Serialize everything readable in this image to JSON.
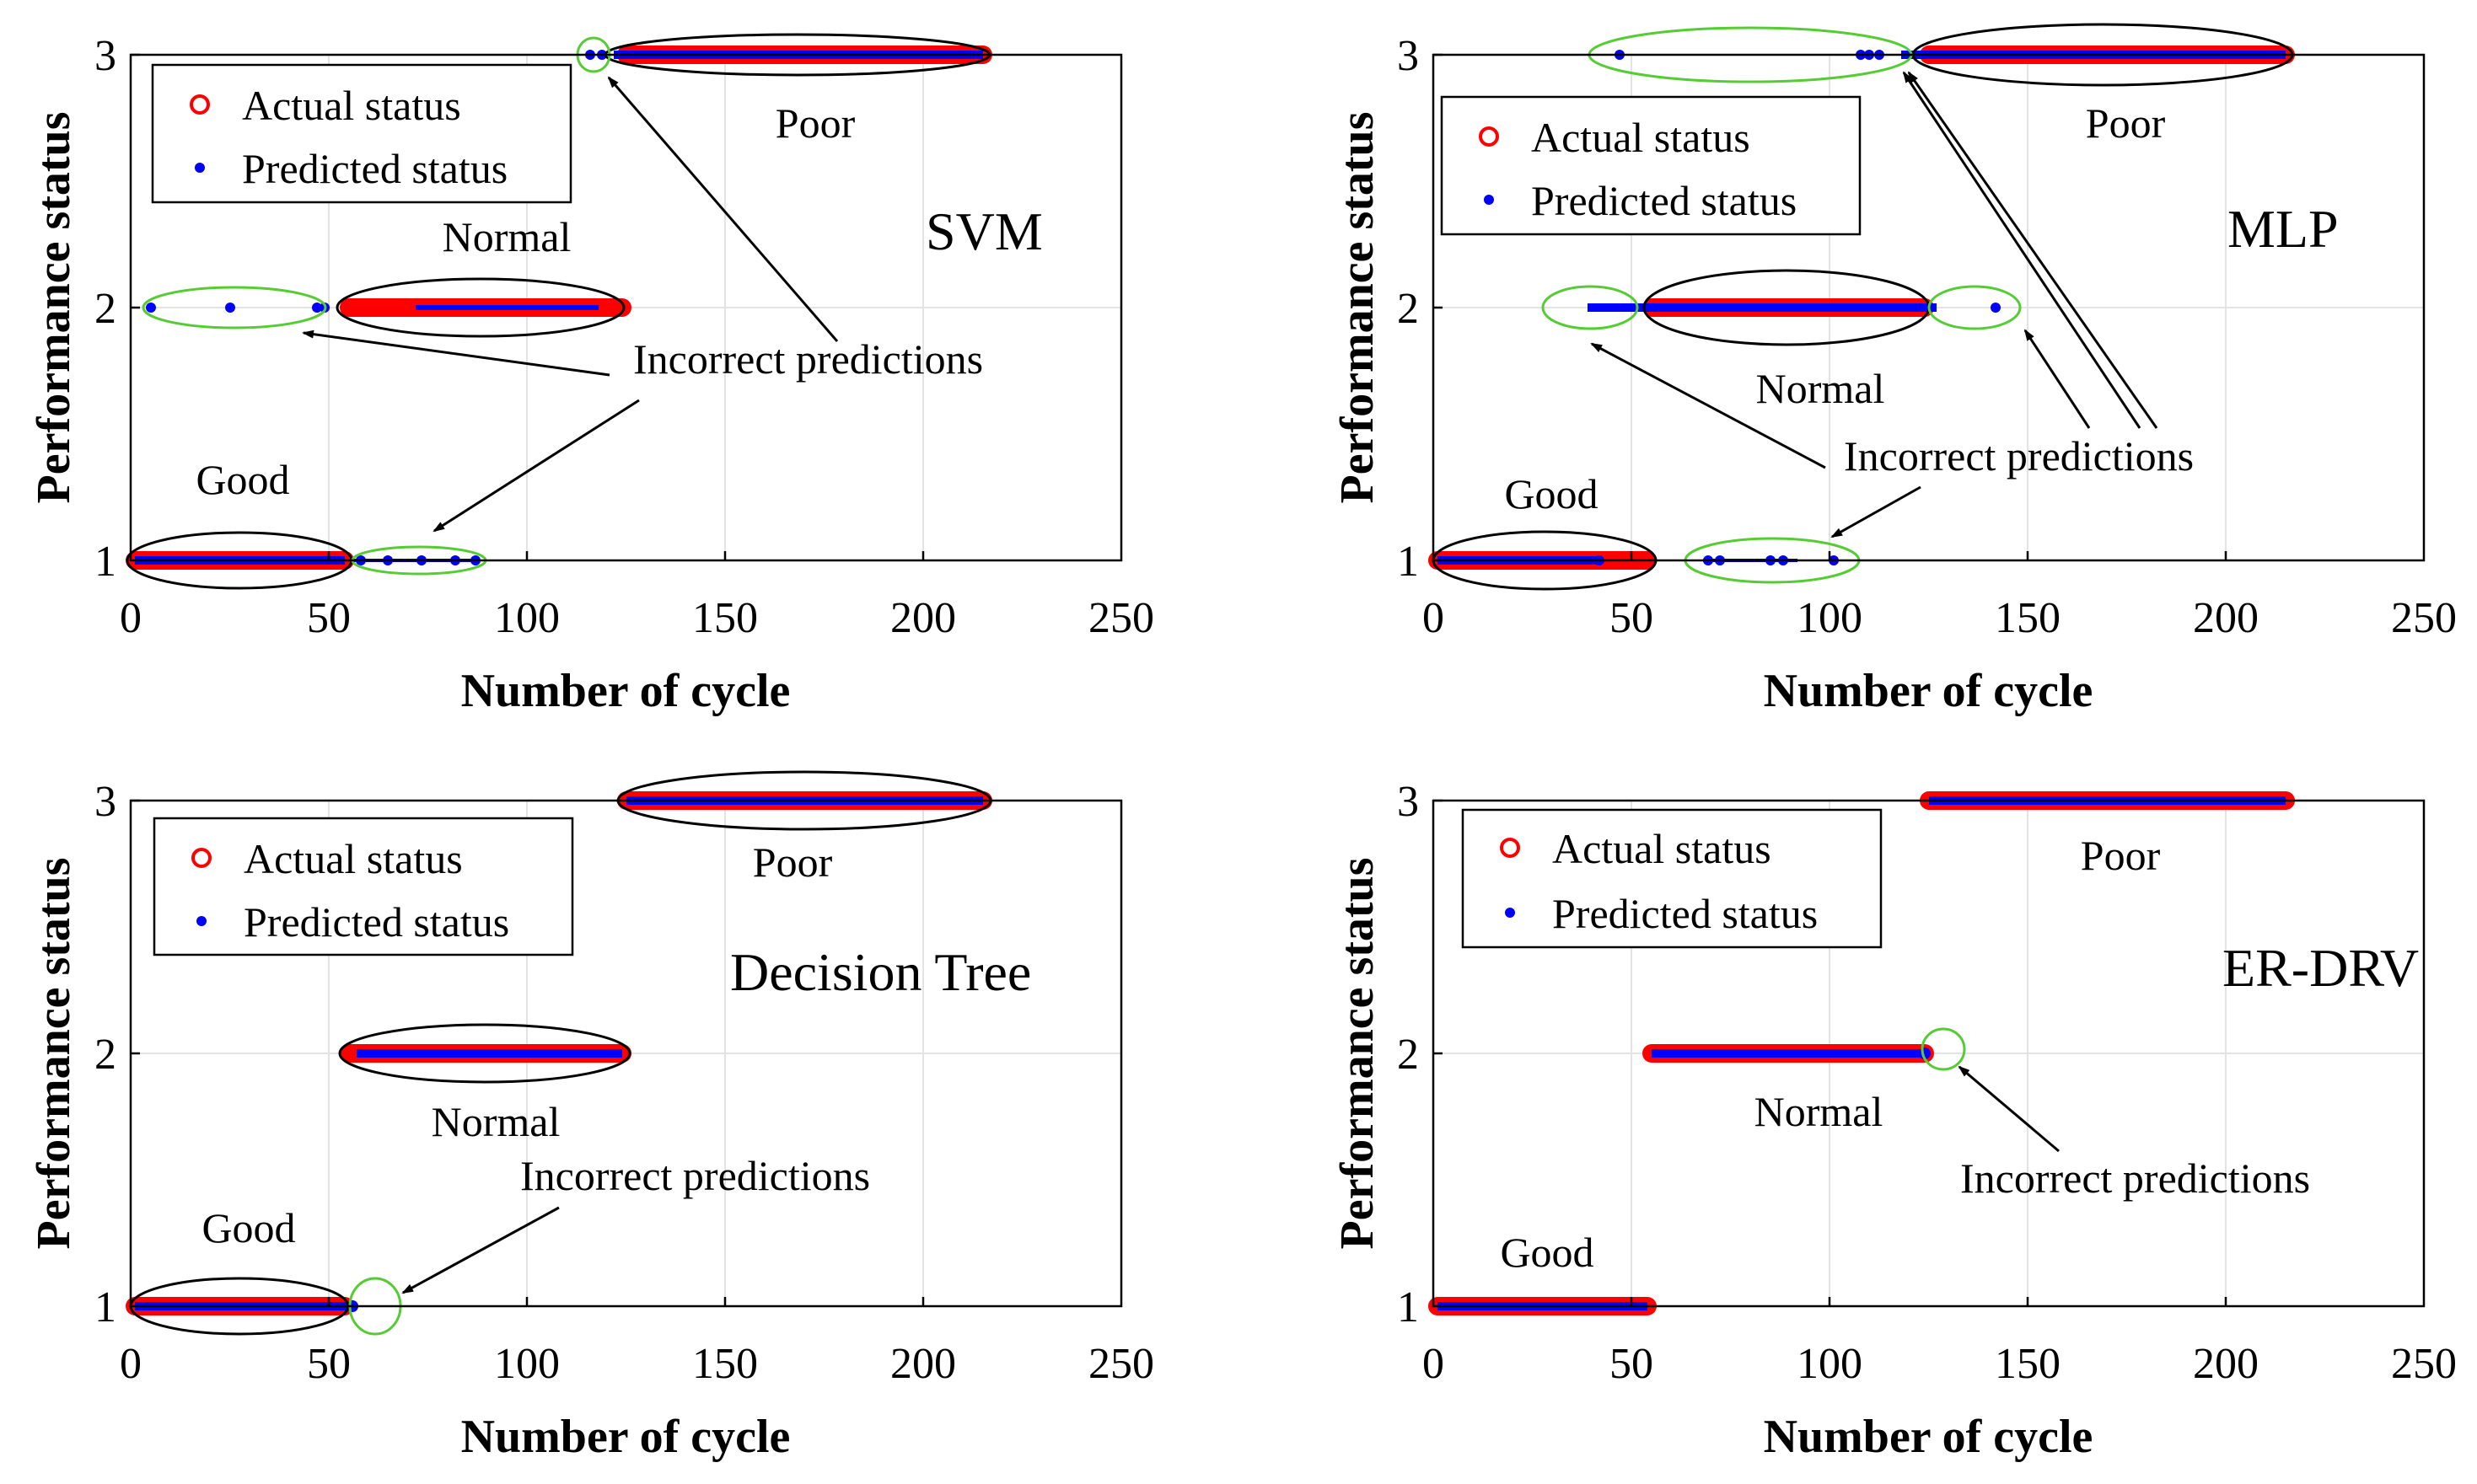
{
  "colors": {
    "actual": "#ff0000",
    "predicted": "#0000ff",
    "highlight": "#55cc33",
    "group": "#000000",
    "grid": "#e3e3e3"
  },
  "chart_data": [
    {
      "type": "scatter",
      "title": "SVM",
      "xlabel": "Number of cycle",
      "ylabel": "Performance status",
      "xlim": [
        0,
        250
      ],
      "ylim": [
        1,
        3
      ],
      "xticks": [
        0,
        50,
        100,
        150,
        200,
        250
      ],
      "yticks": [
        1,
        2,
        3
      ],
      "grid": true,
      "legend": {
        "position": "top-left",
        "entries": [
          "Actual status",
          "Predicted status"
        ]
      },
      "series": [
        {
          "name": "Actual status",
          "marker": "circle",
          "segments": [
            {
              "x": [
                1,
                54
              ],
              "y": 1
            },
            {
              "x": [
                55,
                124
              ],
              "y": 2
            },
            {
              "x": [
                125,
                215
              ],
              "y": 3
            }
          ]
        },
        {
          "name": "Predicted status",
          "marker": "dot",
          "segments": [
            {
              "x": [
                1,
                54
              ],
              "y": 1
            },
            {
              "x": [
                56,
                87
              ],
              "y": 1
            },
            {
              "x": [
                72,
                118
              ],
              "y": 2
            },
            {
              "x": [
                122,
                215
              ],
              "y": 3
            }
          ],
          "points": [
            {
              "x": 5,
              "y": 2
            },
            {
              "x": 25,
              "y": 2
            },
            {
              "x": 47,
              "y": 2
            },
            {
              "x": 49,
              "y": 2
            },
            {
              "x": 115,
              "y": 3
            },
            {
              "x": 118,
              "y": 3
            }
          ]
        }
      ],
      "groups": [
        {
          "label": "Good",
          "x": [
            0,
            55
          ],
          "y": 1
        },
        {
          "label": "Normal",
          "x": [
            52,
            124
          ],
          "y": 2
        },
        {
          "label": "Poor",
          "x": [
            120,
            216
          ],
          "y": 3
        }
      ],
      "highlights": [
        {
          "x": [
            3,
            51
          ],
          "y": 2
        },
        {
          "x": [
            56,
            89
          ],
          "y": 1
        },
        {
          "x": [
            112,
            120
          ],
          "y": 3
        }
      ],
      "annotation": "Incorrect predictions"
    },
    {
      "type": "scatter",
      "title": "MLP",
      "xlabel": "Number of cycle",
      "ylabel": "Performance status",
      "xlim": [
        0,
        250
      ],
      "ylim": [
        1,
        3
      ],
      "xticks": [
        0,
        50,
        100,
        150,
        200,
        250
      ],
      "yticks": [
        1,
        2,
        3
      ],
      "grid": true,
      "legend": {
        "position": "top-left",
        "entries": [
          "Actual status",
          "Predicted status"
        ]
      },
      "series": [
        {
          "name": "Actual status",
          "marker": "circle",
          "segments": [
            {
              "x": [
                1,
                54
              ],
              "y": 1
            },
            {
              "x": [
                55,
                124
              ],
              "y": 2
            },
            {
              "x": [
                125,
                215
              ],
              "y": 3
            }
          ]
        },
        {
          "name": "Predicted status",
          "marker": "dot",
          "segments": [
            {
              "x": [
                1,
                42
              ],
              "y": 1
            },
            {
              "x": [
                68,
                92
              ],
              "y": 1
            },
            {
              "x": [
                39,
                127
              ],
              "y": 2
            },
            {
              "x": [
                118,
                215
              ],
              "y": 3
            }
          ],
          "points": [
            {
              "x": 101,
              "y": 1
            },
            {
              "x": 142,
              "y": 2
            },
            {
              "x": 47,
              "y": 3
            }
          ]
        }
      ],
      "groups": [
        {
          "label": "Good",
          "x": [
            0,
            55
          ],
          "y": 1
        },
        {
          "label": "Normal",
          "x": [
            52,
            124
          ],
          "y": 2
        },
        {
          "label": "Poor",
          "x": [
            120,
            216
          ],
          "y": 3
        }
      ],
      "highlights": [
        {
          "x": [
            40,
            120
          ],
          "y": 3
        },
        {
          "x": [
            29,
            41
          ],
          "y": 2
        },
        {
          "x": [
            128,
            148
          ],
          "y": 2
        },
        {
          "x": [
            63,
            107
          ],
          "y": 1
        }
      ],
      "annotation": "Incorrect predictions"
    },
    {
      "type": "scatter",
      "title": "Decision Tree",
      "xlabel": "Number of cycle",
      "ylabel": "Performance status",
      "xlim": [
        0,
        250
      ],
      "ylim": [
        1,
        3
      ],
      "xticks": [
        0,
        50,
        100,
        150,
        200,
        250
      ],
      "yticks": [
        1,
        2,
        3
      ],
      "grid": true,
      "legend": {
        "position": "top-left",
        "entries": [
          "Actual status",
          "Predicted status"
        ]
      },
      "series": [
        {
          "name": "Actual status",
          "marker": "circle",
          "segments": [
            {
              "x": [
                1,
                54
              ],
              "y": 1
            },
            {
              "x": [
                55,
                124
              ],
              "y": 2
            },
            {
              "x": [
                125,
                215
              ],
              "y": 3
            }
          ]
        },
        {
          "name": "Predicted status",
          "marker": "dot",
          "segments": [
            {
              "x": [
                1,
                56
              ],
              "y": 1
            },
            {
              "x": [
                57,
                124
              ],
              "y": 2
            },
            {
              "x": [
                125,
                215
              ],
              "y": 3
            }
          ],
          "points": [
            {
              "x": 56,
              "y": 1
            }
          ]
        }
      ],
      "groups": [
        {
          "label": "Good",
          "x": [
            0,
            55
          ],
          "y": 1
        },
        {
          "label": "Normal",
          "x": [
            52,
            124
          ],
          "y": 2
        },
        {
          "label": "Poor",
          "x": [
            120,
            216
          ],
          "y": 3
        }
      ],
      "highlights": [
        {
          "x": [
            54,
            67
          ],
          "y": 1
        }
      ],
      "annotation": "Incorrect predictions"
    },
    {
      "type": "scatter",
      "title": "ER-DRV",
      "xlabel": "Number of cycle",
      "ylabel": "Performance status",
      "xlim": [
        0,
        250
      ],
      "ylim": [
        1,
        3
      ],
      "xticks": [
        0,
        50,
        100,
        150,
        200,
        250
      ],
      "yticks": [
        1,
        2,
        3
      ],
      "grid": true,
      "legend": {
        "position": "top-left",
        "entries": [
          "Actual status",
          "Predicted status"
        ]
      },
      "series": [
        {
          "name": "Actual status",
          "marker": "circle",
          "segments": [
            {
              "x": [
                1,
                54
              ],
              "y": 1
            },
            {
              "x": [
                55,
                124
              ],
              "y": 2
            },
            {
              "x": [
                125,
                215
              ],
              "y": 3
            }
          ]
        },
        {
          "name": "Predicted status",
          "marker": "dot",
          "segments": [
            {
              "x": [
                1,
                54
              ],
              "y": 1
            },
            {
              "x": [
                55,
                124
              ],
              "y": 2
            },
            {
              "x": [
                125,
                215
              ],
              "y": 3
            }
          ],
          "points": [
            {
              "x": 124,
              "y": 2
            }
          ]
        }
      ],
      "groups": [
        {
          "label": "Good",
          "x": [
            0,
            55
          ],
          "y": 1,
          "hideEllipse": true
        },
        {
          "label": "Normal",
          "x": [
            52,
            124
          ],
          "y": 2,
          "hideEllipse": true
        },
        {
          "label": "Poor",
          "x": [
            120,
            216
          ],
          "y": 3,
          "hideEllipse": true
        }
      ],
      "highlights": [
        {
          "x": [
            122,
            134
          ],
          "y": 2
        }
      ],
      "annotation": "Incorrect predictions"
    }
  ]
}
